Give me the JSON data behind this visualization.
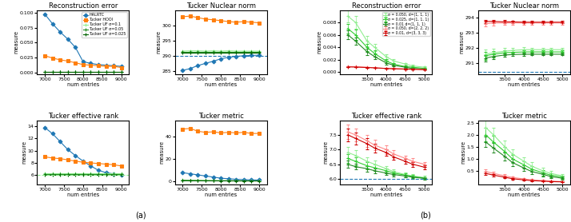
{
  "fig_width": 7.14,
  "fig_height": 2.78,
  "panel_a": {
    "x": [
      7000,
      7200,
      7400,
      7600,
      7800,
      8000,
      8200,
      8400,
      8600,
      8800,
      9000
    ],
    "x_ticks": [
      7000,
      7500,
      8000,
      8500,
      9000
    ],
    "xlabel": "num entries",
    "recon_error": {
      "title": "Reconstruction error",
      "ylabel": "measure",
      "ylim": [
        -0.003,
        0.105
      ],
      "yticks": [
        0.0,
        0.025,
        0.05,
        0.075,
        0.1
      ],
      "legend_keys": [
        "HALRTC",
        "Tucker HOOI",
        "Tucker UF 0.1",
        "Tucker UF 0.05",
        "Tucker UF 0.025"
      ],
      "series": {
        "HALRTC": {
          "color": "#1f77b4",
          "marker": "D",
          "y": [
            0.098,
            0.082,
            0.068,
            0.056,
            0.042,
            0.018,
            0.015,
            0.013,
            0.012,
            0.011,
            0.01
          ],
          "legend": "HALRTC"
        },
        "Tucker HOOI": {
          "color": "#ff7f0e",
          "marker": "s",
          "y": [
            0.028,
            0.024,
            0.021,
            0.019,
            0.016,
            0.013,
            0.012,
            0.011,
            0.01,
            0.01,
            0.008
          ],
          "legend": "Tucker HOOI"
        },
        "Tucker UF 0.1": {
          "color": "#90ee90",
          "marker": "+",
          "y": [
            0.0008,
            0.0008,
            0.0008,
            0.0008,
            0.0008,
            0.0008,
            0.0008,
            0.0008,
            0.0008,
            0.0008,
            0.0008
          ],
          "legend": "Tucker UF σ=0.1"
        },
        "Tucker UF 0.05": {
          "color": "#228B22",
          "marker": "+",
          "y": [
            0.0004,
            0.0004,
            0.0004,
            0.0004,
            0.0004,
            0.0004,
            0.0004,
            0.0004,
            0.0004,
            0.0004,
            0.0004
          ],
          "legend": "Tucker UF σ=0.05"
        },
        "Tucker UF 0.025": {
          "color": "#006400",
          "marker": "+",
          "y": [
            0.0001,
            0.0001,
            0.0001,
            0.0001,
            0.0001,
            0.0001,
            0.0001,
            0.0001,
            0.0001,
            0.0001,
            0.0001
          ],
          "legend": "Tucker UF σ=0.025"
        }
      }
    },
    "tucker_nuclear_norm": {
      "title": "Tucker Nuclear norm",
      "ylabel": "measure",
      "ylim": [
        284,
        305
      ],
      "yticks": [
        285,
        290,
        295,
        300
      ],
      "dashed_line": 290.0,
      "series": {
        "HALRTC": {
          "color": "#1f77b4",
          "marker": "D",
          "y": [
            285.2,
            285.8,
            286.8,
            287.5,
            288.2,
            289.0,
            289.5,
            289.8,
            290.0,
            290.1,
            290.2
          ]
        },
        "Tucker HOOI": {
          "color": "#ff7f0e",
          "marker": "s",
          "y": [
            302.8,
            303.0,
            302.5,
            302.0,
            301.8,
            301.5,
            301.2,
            301.0,
            301.2,
            301.0,
            300.8
          ]
        },
        "Tucker UF 0.1": {
          "color": "#90ee90",
          "marker": "+",
          "y": [
            291.5,
            291.6,
            291.6,
            291.5,
            291.6,
            291.5,
            291.6,
            291.5,
            291.5,
            291.5,
            291.5
          ]
        },
        "Tucker UF 0.05": {
          "color": "#228B22",
          "marker": "+",
          "y": [
            291.2,
            291.2,
            291.2,
            291.2,
            291.2,
            291.2,
            291.2,
            291.2,
            291.2,
            291.2,
            291.2
          ]
        },
        "Tucker UF 0.025": {
          "color": "#006400",
          "marker": "+",
          "y": [
            290.9,
            290.9,
            290.9,
            290.9,
            290.9,
            290.9,
            290.9,
            290.9,
            290.9,
            290.9,
            290.9
          ]
        }
      }
    },
    "tucker_eff_rank": {
      "title": "Tucker effective rank",
      "ylabel": "measure",
      "ylim": [
        4.5,
        15
      ],
      "yticks": [
        6,
        8,
        10,
        12,
        14
      ],
      "dashed_line": 6.0,
      "series": {
        "HALRTC": {
          "color": "#1f77b4",
          "marker": "D",
          "y": [
            13.8,
            12.8,
            11.5,
            10.2,
            9.2,
            8.3,
            7.5,
            6.8,
            6.4,
            6.2,
            6.1
          ]
        },
        "Tucker HOOI": {
          "color": "#ff7f0e",
          "marker": "s",
          "y": [
            9.0,
            8.8,
            8.7,
            8.5,
            8.3,
            8.1,
            8.0,
            7.9,
            7.8,
            7.7,
            7.5
          ]
        },
        "Tucker UF 0.1": {
          "color": "#90ee90",
          "marker": "+",
          "y": [
            6.35,
            6.35,
            6.35,
            6.35,
            6.35,
            6.35,
            6.35,
            6.35,
            6.35,
            6.35,
            6.35
          ]
        },
        "Tucker UF 0.05": {
          "color": "#228B22",
          "marker": "+",
          "y": [
            6.15,
            6.15,
            6.15,
            6.15,
            6.15,
            6.15,
            6.15,
            6.15,
            6.15,
            6.15,
            6.15
          ]
        },
        "Tucker UF 0.025": {
          "color": "#006400",
          "marker": "+",
          "y": [
            6.05,
            6.05,
            6.05,
            6.05,
            6.05,
            6.05,
            6.05,
            6.05,
            6.05,
            6.05,
            6.05
          ]
        }
      }
    },
    "tucker_metric": {
      "title": "Tucker metric",
      "ylabel": "measure",
      "ylim": [
        -3,
        55
      ],
      "yticks": [
        0,
        20,
        40
      ],
      "series": {
        "HALRTC": {
          "color": "#1f77b4",
          "marker": "D",
          "y": [
            7.5,
            6.5,
            5.5,
            4.5,
            3.5,
            2.5,
            2.0,
            1.5,
            1.2,
            1.0,
            0.8
          ]
        },
        "Tucker HOOI": {
          "color": "#ff7f0e",
          "marker": "s",
          "y": [
            47.0,
            47.5,
            45.0,
            44.0,
            44.5,
            43.5,
            44.0,
            43.5,
            44.0,
            43.0,
            43.0
          ]
        },
        "Tucker UF 0.1": {
          "color": "#90ee90",
          "marker": "+",
          "y": [
            0.8,
            0.6,
            0.5,
            0.4,
            0.3,
            0.25,
            0.2,
            0.15,
            0.12,
            0.1,
            0.08
          ]
        },
        "Tucker UF 0.05": {
          "color": "#228B22",
          "marker": "+",
          "y": [
            0.4,
            0.3,
            0.25,
            0.2,
            0.15,
            0.12,
            0.1,
            0.08,
            0.06,
            0.05,
            0.04
          ]
        },
        "Tucker UF 0.025": {
          "color": "#006400",
          "marker": "+",
          "y": [
            0.2,
            0.15,
            0.12,
            0.1,
            0.08,
            0.06,
            0.05,
            0.04,
            0.03,
            0.025,
            0.02
          ]
        }
      }
    }
  },
  "panel_b": {
    "x": [
      3000,
      3200,
      3500,
      3700,
      4000,
      4200,
      4500,
      4700,
      5000
    ],
    "x_ticks": [
      3500,
      4000,
      4500,
      5000
    ],
    "xlabel": "num entries",
    "recon_error": {
      "title": "Reconstruction error",
      "ylabel": "measure",
      "ylim": [
        -0.0003,
        0.01
      ],
      "yticks": [
        0.0,
        0.002,
        0.004,
        0.006,
        0.008
      ],
      "legend_keys": [
        "s050_d111",
        "s025_d111",
        "s010_d111",
        "s050_d222",
        "s010_d333"
      ],
      "series": {
        "s050_d111": {
          "color": "#90ee90",
          "y": [
            0.009,
            0.008,
            0.005,
            0.004,
            0.0025,
            0.0018,
            0.0013,
            0.001,
            0.0008
          ],
          "err": [
            0.001,
            0.001,
            0.0008,
            0.0006,
            0.0004,
            0.0003,
            0.0002,
            0.0002,
            0.0001
          ],
          "legend": "σ = 0.050, d=(1, 1, 1)"
        },
        "s025_d111": {
          "color": "#32CD32",
          "y": [
            0.007,
            0.006,
            0.004,
            0.003,
            0.0018,
            0.0013,
            0.0009,
            0.0008,
            0.0006
          ],
          "err": [
            0.0008,
            0.0008,
            0.0006,
            0.0005,
            0.0003,
            0.0002,
            0.0002,
            0.0001,
            0.0001
          ],
          "legend": "σ = 0.025, d=(1, 1, 1)"
        },
        "s010_d111": {
          "color": "#228B22",
          "y": [
            0.006,
            0.005,
            0.0033,
            0.0025,
            0.0015,
            0.0011,
            0.0008,
            0.0006,
            0.0005
          ],
          "err": [
            0.0007,
            0.0006,
            0.0005,
            0.0004,
            0.0003,
            0.0002,
            0.0001,
            0.0001,
            0.0001
          ],
          "legend": "σ = 0.01 d=(1, 1, 1)"
        },
        "s050_d222": {
          "color": "#ff8888",
          "y": [
            0.0009,
            0.0009,
            0.0008,
            0.0007,
            0.0006,
            0.0006,
            0.0005,
            0.0005,
            0.0004
          ],
          "err": [
            8e-05,
            8e-05,
            7e-05,
            7e-05,
            6e-05,
            5e-05,
            5e-05,
            4e-05,
            4e-05
          ],
          "legend": "σ = 0.050, d=(2, 2, 2)"
        },
        "s010_d333": {
          "color": "#cc0000",
          "y": [
            0.00085,
            0.00082,
            0.00075,
            0.0007,
            0.0006,
            0.00055,
            0.0005,
            0.00047,
            0.00042
          ],
          "err": [
            6e-05,
            6e-05,
            5e-05,
            5e-05,
            4e-05,
            4e-05,
            3e-05,
            3e-05,
            3e-05
          ],
          "legend": "σ = 0.01, d=(3, 3, 3)"
        }
      }
    },
    "tucker_nuclear_norm": {
      "title": "Tucker Nuclear norm",
      "ylabel": "measure",
      "ylim": [
        290.3,
        294.5
      ],
      "yticks": [
        291,
        292,
        293,
        294
      ],
      "dashed_line": 290.5,
      "series": {
        "s050_d111": {
          "color": "#90ee90",
          "y": [
            291.6,
            291.7,
            291.8,
            291.85,
            291.9,
            291.9,
            291.9,
            291.9,
            291.9
          ],
          "err": [
            0.3,
            0.25,
            0.2,
            0.18,
            0.15,
            0.12,
            0.12,
            0.12,
            0.12
          ]
        },
        "s025_d111": {
          "color": "#32CD32",
          "y": [
            291.5,
            291.6,
            291.7,
            291.72,
            291.75,
            291.75,
            291.75,
            291.75,
            291.75
          ],
          "err": [
            0.25,
            0.2,
            0.15,
            0.14,
            0.12,
            0.1,
            0.1,
            0.1,
            0.1
          ]
        },
        "s010_d111": {
          "color": "#228B22",
          "y": [
            291.35,
            291.45,
            291.55,
            291.58,
            291.6,
            291.6,
            291.6,
            291.6,
            291.6
          ],
          "err": [
            0.2,
            0.15,
            0.12,
            0.1,
            0.1,
            0.08,
            0.08,
            0.08,
            0.08
          ]
        },
        "s050_d222": {
          "color": "#ff8888",
          "y": [
            293.6,
            293.65,
            293.65,
            293.65,
            293.65,
            293.65,
            293.65,
            293.65,
            293.65
          ],
          "err": [
            0.18,
            0.15,
            0.12,
            0.12,
            0.1,
            0.1,
            0.1,
            0.1,
            0.1
          ]
        },
        "s010_d333": {
          "color": "#cc0000",
          "y": [
            293.75,
            293.75,
            293.72,
            293.72,
            293.7,
            293.7,
            293.7,
            293.7,
            293.7
          ],
          "err": [
            0.12,
            0.1,
            0.1,
            0.08,
            0.08,
            0.08,
            0.08,
            0.08,
            0.08
          ]
        }
      }
    },
    "tucker_eff_rank": {
      "title": "Tucker effective rank",
      "ylabel": "measure",
      "ylim": [
        5.82,
        8.0
      ],
      "yticks": [
        6.0,
        6.5,
        7.0,
        7.5
      ],
      "dashed_line": 6.0,
      "series": {
        "s050_d111": {
          "color": "#90ee90",
          "y": [
            6.9,
            6.8,
            6.6,
            6.5,
            6.35,
            6.25,
            6.15,
            6.1,
            6.05
          ],
          "err": [
            0.2,
            0.18,
            0.15,
            0.12,
            0.1,
            0.08,
            0.07,
            0.06,
            0.05
          ]
        },
        "s025_d111": {
          "color": "#32CD32",
          "y": [
            6.7,
            6.6,
            6.45,
            6.38,
            6.28,
            6.2,
            6.13,
            6.08,
            6.03
          ],
          "err": [
            0.15,
            0.14,
            0.12,
            0.1,
            0.08,
            0.07,
            0.06,
            0.05,
            0.04
          ]
        },
        "s010_d111": {
          "color": "#228B22",
          "y": [
            6.5,
            6.42,
            6.35,
            6.28,
            6.2,
            6.15,
            6.1,
            6.06,
            6.02
          ],
          "err": [
            0.12,
            0.1,
            0.09,
            0.08,
            0.07,
            0.06,
            0.05,
            0.05,
            0.04
          ]
        },
        "s050_d222": {
          "color": "#ff8888",
          "y": [
            7.6,
            7.5,
            7.3,
            7.15,
            7.0,
            6.85,
            6.7,
            6.6,
            6.5
          ],
          "err": [
            0.25,
            0.22,
            0.2,
            0.18,
            0.15,
            0.12,
            0.1,
            0.1,
            0.08
          ]
        },
        "s010_d333": {
          "color": "#cc0000",
          "y": [
            7.5,
            7.38,
            7.2,
            7.05,
            6.9,
            6.75,
            6.6,
            6.5,
            6.4
          ],
          "err": [
            0.22,
            0.2,
            0.18,
            0.15,
            0.12,
            0.1,
            0.08,
            0.08,
            0.07
          ]
        }
      }
    },
    "tucker_metric": {
      "title": "Tucker metric",
      "ylabel": "measure",
      "ylim": [
        -0.05,
        2.6
      ],
      "yticks": [
        0.5,
        1.0,
        1.5,
        2.0,
        2.5
      ],
      "series": {
        "s050_d111": {
          "color": "#90ee90",
          "y": [
            2.3,
            2.0,
            1.5,
            1.2,
            0.9,
            0.7,
            0.5,
            0.4,
            0.3
          ],
          "err": [
            0.35,
            0.3,
            0.25,
            0.2,
            0.18,
            0.15,
            0.12,
            0.1,
            0.08
          ]
        },
        "s025_d111": {
          "color": "#32CD32",
          "y": [
            2.0,
            1.7,
            1.3,
            1.0,
            0.75,
            0.58,
            0.42,
            0.33,
            0.25
          ],
          "err": [
            0.28,
            0.25,
            0.2,
            0.17,
            0.14,
            0.12,
            0.1,
            0.08,
            0.07
          ]
        },
        "s010_d111": {
          "color": "#228B22",
          "y": [
            1.7,
            1.45,
            1.1,
            0.85,
            0.62,
            0.48,
            0.36,
            0.27,
            0.2
          ],
          "err": [
            0.22,
            0.2,
            0.17,
            0.14,
            0.12,
            0.1,
            0.08,
            0.07,
            0.06
          ]
        },
        "s050_d222": {
          "color": "#ff8888",
          "y": [
            0.48,
            0.4,
            0.3,
            0.23,
            0.17,
            0.13,
            0.1,
            0.08,
            0.06
          ],
          "err": [
            0.08,
            0.07,
            0.06,
            0.05,
            0.04,
            0.03,
            0.03,
            0.02,
            0.02
          ]
        },
        "s010_d333": {
          "color": "#cc0000",
          "y": [
            0.4,
            0.33,
            0.24,
            0.18,
            0.13,
            0.1,
            0.08,
            0.06,
            0.05
          ],
          "err": [
            0.06,
            0.05,
            0.04,
            0.04,
            0.03,
            0.03,
            0.02,
            0.02,
            0.01
          ]
        }
      }
    }
  },
  "label_a": "(a)",
  "label_b": "(b)"
}
